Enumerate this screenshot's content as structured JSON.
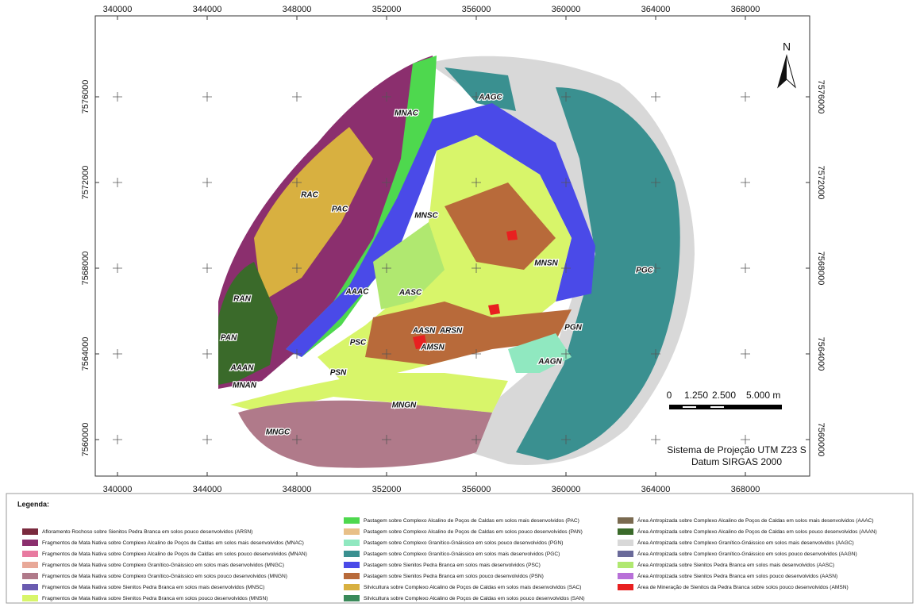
{
  "map": {
    "x_ticks": [
      340000,
      344000,
      348000,
      352000,
      356000,
      360000,
      364000,
      368000
    ],
    "y_ticks": [
      7576000,
      7572000,
      7568000,
      7564000,
      7560000
    ],
    "north": "N",
    "scale_labels": [
      "0",
      "1.250",
      "2.500",
      "5.000 m"
    ],
    "projection": [
      "Sistema de Projeção UTM Z23 S",
      "Datum SIRGAS 2000"
    ],
    "region_labels": [
      "MNAC",
      "AAGC",
      "RAC",
      "PAC",
      "MNSC",
      "MNSN",
      "PGC",
      "RAN",
      "AAAC",
      "AASC",
      "ARSN",
      "AASN",
      "PAN",
      "PSC",
      "AMSN",
      "PGN",
      "AAAN",
      "AAGN",
      "PSN",
      "MNAN",
      "MNGN",
      "MNGC"
    ]
  },
  "legend": {
    "title": "Legenda:",
    "items": [
      {
        "label": "Afloramento Rochoso sobre Sienitos Pedra Branca em solos pouco desenvolvidos (ARSN)",
        "color": "#7a2a3e"
      },
      {
        "label": "Fragmentos de Mata Nativa sobre Complexo Alcalino de Poços de Caldas em solos mais desenvolvidos (MNAC)",
        "color": "#8b2f6e"
      },
      {
        "label": "Fragmentos de Mata Nativa sobre Complexo Alcalino de Poços de Caldas em solos pouco desenvolvidos (MNAN)",
        "color": "#e87aa0"
      },
      {
        "label": "Fragmentos de Mata Nativa sobre Complexo Granítico-Gnáissico em solos mais desenvolvidos (MNGC)",
        "color": "#e8a898"
      },
      {
        "label": "Fragmentos de Mata Nativa sobre Complexo Granítico-Gnáissico em solos pouco desenvolvidos (MNGN)",
        "color": "#b07a8a"
      },
      {
        "label": "Fragmentos de Mata Nativa sobre Sienitos Pedra Branca em solos mais desenvolvidos (MNSC)",
        "color": "#6a5bb0"
      },
      {
        "label": "Fragmentos de Mata Nativa sobre Sienitos Pedra Branca em solos pouco desenvolvidos (MNSN)",
        "color": "#d8f56a"
      },
      {
        "label": "Pastagem sobre Complexo Alcalino de Poços de Caldas em solos mais desenvolvidos (PAC)",
        "color": "#4ed84e"
      },
      {
        "label": "Pastagem sobre Complexo Alcalino de Poços de Caldas em solos pouco desenvolvidos (PAN)",
        "color": "#e8c088"
      },
      {
        "label": "Pastagem sobre Complexo Granítico-Gnáissico em solos pouco desenvolvidos (PGN)",
        "color": "#90e8c0"
      },
      {
        "label": "Pastagem sobre Complexo Granítico-Gnáissico em solos mais desenvolvidos (PGC)",
        "color": "#3a9090"
      },
      {
        "label": "Pastagem sobre Sienitos Pedra Branca em solos mais desenvolvidos (PSC)",
        "color": "#4a4ae8"
      },
      {
        "label": "Pastagem sobre Sienitos Pedra Branca em solos pouco desenvolvidos (PSN)",
        "color": "#b86a3a"
      },
      {
        "label": "Silvicultura sobre Complexo Alcalino de Poços de Caldas em solos mais desenvolvidos (SAC)",
        "color": "#d8b040"
      },
      {
        "label": "Silvicultura sobre Complexo Alcalino de Poços de Caldas em solos pouco desenvolvidos (SAN)",
        "color": "#3a8a5a"
      },
      {
        "label": "Área Antropizada sobre Complexo Alcalino de Poços de Caldas em solos mais desenvolvidos (AAAC)",
        "color": "#7a6a50"
      },
      {
        "label": "Área Antropizada sobre Complexo Alcalino de Poços de Caldas em solos pouco desenvolvidos (AAAN)",
        "color": "#3a6a2a"
      },
      {
        "label": "Área Antropizada sobre Complexo Granítico-Gnáissico em solos mais desenvolvidos (AAGC)",
        "color": "#d8d8d8"
      },
      {
        "label": "Área Antropizada sobre Complexo Granítico-Gnáissico em solos pouco desenvolvidos (AAGN)",
        "color": "#6a6a9a"
      },
      {
        "label": "Área Antropizada sobre Sienitos Pedra Branca em solos mais desenvolvidos (AASC)",
        "color": "#b0e870"
      },
      {
        "label": "Área Antropizada sobre Sienitos Pedra Branca em solos pouco desenvolvidos (AASN)",
        "color": "#b870d8"
      },
      {
        "label": "Área de Mineração de Sienitos da Pedra Branca sobre solos pouco desenvolvidos (AMSN)",
        "color": "#e82020"
      }
    ]
  }
}
